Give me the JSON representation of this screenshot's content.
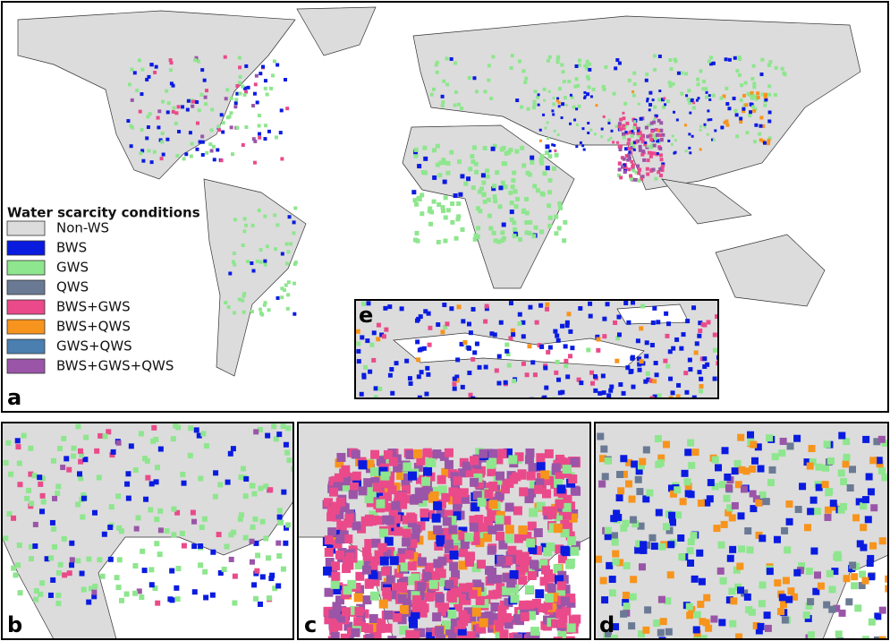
{
  "legend": {
    "title": "Water scarcity conditions",
    "items": [
      {
        "label": "Non-WS",
        "color": "#dcdcdc"
      },
      {
        "label": "BWS",
        "color": "#0a1be0"
      },
      {
        "label": "GWS",
        "color": "#8ee68e"
      },
      {
        "label": "QWS",
        "color": "#6a7a94"
      },
      {
        "label": "BWS+GWS",
        "color": "#ea4a8a"
      },
      {
        "label": "BWS+QWS",
        "color": "#f7941d"
      },
      {
        "label": "GWS+QWS",
        "color": "#4a7fb0"
      },
      {
        "label": "BWS+GWS+QWS",
        "color": "#9a55a8"
      }
    ]
  },
  "panels": [
    {
      "label": "a"
    },
    {
      "label": "b"
    },
    {
      "label": "c"
    },
    {
      "label": "d"
    },
    {
      "label": "e"
    }
  ]
}
